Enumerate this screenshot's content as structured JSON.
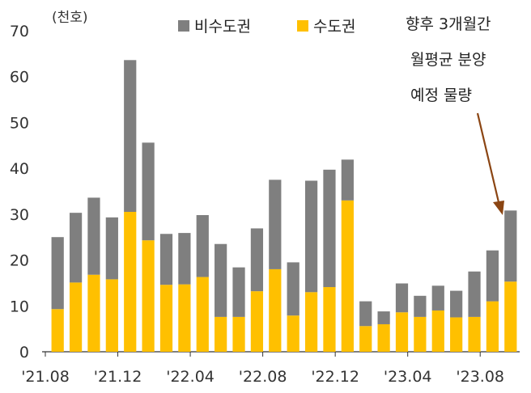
{
  "chart_data": {
    "type": "bar",
    "stacked": true,
    "unit_label": "(천호)",
    "ylim": [
      0,
      70
    ],
    "yticks": [
      0,
      10,
      20,
      30,
      40,
      50,
      60,
      70
    ],
    "x_tick_labels": [
      "'21.08",
      "'21.12",
      "'22.04",
      "'22.08",
      "'22.12",
      "'23.04",
      "'23.08"
    ],
    "categories": [
      "'21.08",
      "'21.09",
      "'21.10",
      "'21.11",
      "'21.12",
      "'22.01",
      "'22.02",
      "'22.03",
      "'22.04",
      "'22.05",
      "'22.06",
      "'22.07",
      "'22.08",
      "'22.09",
      "'22.10",
      "'22.11",
      "'22.12",
      "'23.01",
      "'23.02",
      "'23.03",
      "'23.04",
      "'23.05",
      "'23.06",
      "'23.07",
      "'23.08",
      "'23.09"
    ],
    "series": [
      {
        "name": "수도권",
        "color": "#FFC000",
        "values": [
          9.3,
          15.1,
          16.8,
          15.8,
          30.5,
          24.3,
          14.6,
          14.7,
          16.3,
          7.6,
          7.6,
          13.2,
          18.0,
          7.9,
          13.0,
          14.1,
          33.0,
          5.6,
          6.0,
          8.6,
          7.6,
          9.0,
          7.5,
          7.6,
          11.0,
          15.3
        ]
      },
      {
        "name": "비수도권",
        "color": "#7F7F7F",
        "values": [
          15.7,
          15.2,
          16.8,
          13.5,
          33.1,
          21.3,
          11.1,
          11.2,
          13.5,
          15.9,
          10.8,
          13.7,
          19.5,
          11.6,
          24.3,
          25.6,
          8.9,
          5.4,
          2.8,
          6.3,
          4.6,
          5.4,
          5.8,
          9.9,
          11.1,
          15.5
        ]
      }
    ],
    "legend": [
      "비수도권",
      "수도권"
    ],
    "annotation": {
      "lines": [
        "향후 3개월간",
        "월평균 분양",
        "예정 물량"
      ],
      "color": "#8B4513"
    }
  }
}
